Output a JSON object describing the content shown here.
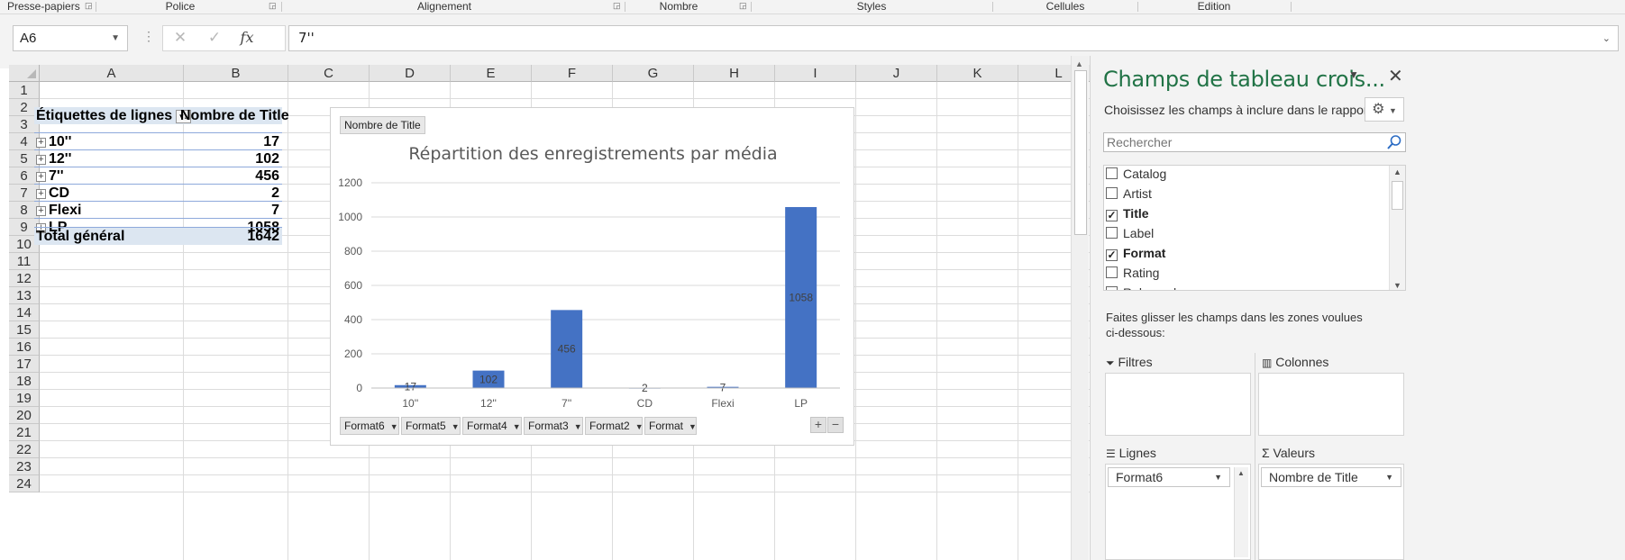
{
  "ribbon": {
    "groups": [
      "Presse-papiers",
      "Police",
      "Alignement",
      "Nombre",
      "Styles",
      "Cellules",
      "Edition"
    ]
  },
  "formula_bar": {
    "name_box": "A6",
    "fx_label": "fx",
    "content": "7''"
  },
  "sheet": {
    "columns": [
      "A",
      "B",
      "C",
      "D",
      "E",
      "F",
      "G",
      "H",
      "I",
      "J",
      "K",
      "L"
    ],
    "rows": [
      "1",
      "2",
      "3",
      "4",
      "5",
      "6",
      "7",
      "8",
      "9",
      "10",
      "11",
      "12",
      "13",
      "14",
      "15",
      "16",
      "17",
      "18",
      "19",
      "20",
      "21",
      "22",
      "23",
      "24"
    ]
  },
  "pivot": {
    "row_header": "Étiquettes de lignes",
    "value_header": "Nombre de Title",
    "rows": [
      {
        "label": "10''",
        "value": "17"
      },
      {
        "label": "12''",
        "value": "102"
      },
      {
        "label": "7''",
        "value": "456"
      },
      {
        "label": "CD",
        "value": "2"
      },
      {
        "label": "Flexi",
        "value": "7"
      },
      {
        "label": "LP",
        "value": "1058"
      }
    ],
    "total_label": "Total général",
    "total_value": "1642"
  },
  "chart": {
    "value_button": "Nombre de Title",
    "field_buttons": [
      "Format6",
      "Format5",
      "Format4",
      "Format3",
      "Format2",
      "Format"
    ],
    "zoom_in": "+",
    "zoom_out": "−",
    "bar_color": "#4472c4"
  },
  "chart_data": {
    "type": "bar",
    "title": "Répartition des enregistrements  par média",
    "categories": [
      "10''",
      "12''",
      "7''",
      "CD",
      "Flexi",
      "LP"
    ],
    "values": [
      17,
      102,
      456,
      2,
      7,
      1058
    ],
    "yticks": [
      0,
      200,
      400,
      600,
      800,
      1000,
      1200
    ],
    "ylim": [
      0,
      1200
    ],
    "xlabel": "",
    "ylabel": "",
    "grid": true,
    "data_labels": true
  },
  "pane": {
    "title": "Champs de tableau crois...",
    "subtitle": "Choisissez les champs à inclure dans le rapport :",
    "search_placeholder": "Rechercher",
    "fields": [
      {
        "name": "Catalog",
        "checked": false
      },
      {
        "name": "Artist",
        "checked": false
      },
      {
        "name": "Title",
        "checked": true
      },
      {
        "name": "Label",
        "checked": false
      },
      {
        "name": "Format",
        "checked": true
      },
      {
        "name": "Rating",
        "checked": false
      },
      {
        "name": "Released",
        "checked": false
      }
    ],
    "hint": "Faites glisser les champs dans les zones voulues ci-dessous:",
    "areas": {
      "filters": "Filtres",
      "columns": "Colonnes",
      "rows": "Lignes",
      "values": "Valeurs"
    },
    "rows_field": "Format6",
    "values_field": "Nombre de Title",
    "accent_color": "#217346"
  }
}
